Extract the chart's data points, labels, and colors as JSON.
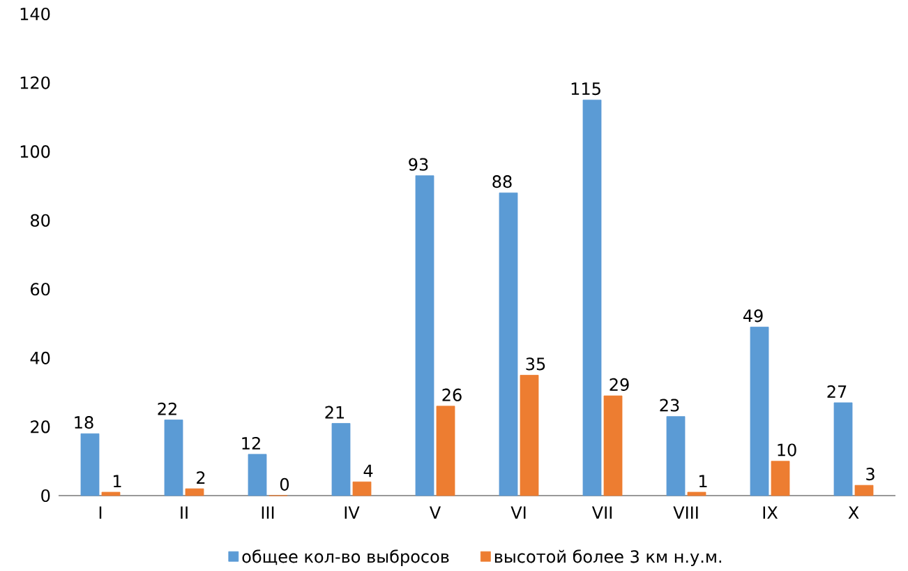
{
  "chart_data": {
    "type": "bar",
    "categories": [
      "I",
      "II",
      "III",
      "IV",
      "V",
      "VI",
      "VII",
      "VIII",
      "IX",
      "X"
    ],
    "series": [
      {
        "name": "общее кол-во выбросов",
        "color": "#5b9bd5",
        "values": [
          18,
          22,
          12,
          21,
          93,
          88,
          115,
          23,
          49,
          27
        ]
      },
      {
        "name": "высотой более 3 км н.у.м.",
        "color": "#ed7d31",
        "values": [
          1,
          2,
          0,
          4,
          26,
          35,
          29,
          1,
          10,
          3
        ]
      }
    ],
    "ylim": [
      0,
      140
    ],
    "yticks": [
      0,
      20,
      40,
      60,
      80,
      100,
      120,
      140
    ],
    "grid": false,
    "legend": "bottom",
    "data_labels": true
  }
}
